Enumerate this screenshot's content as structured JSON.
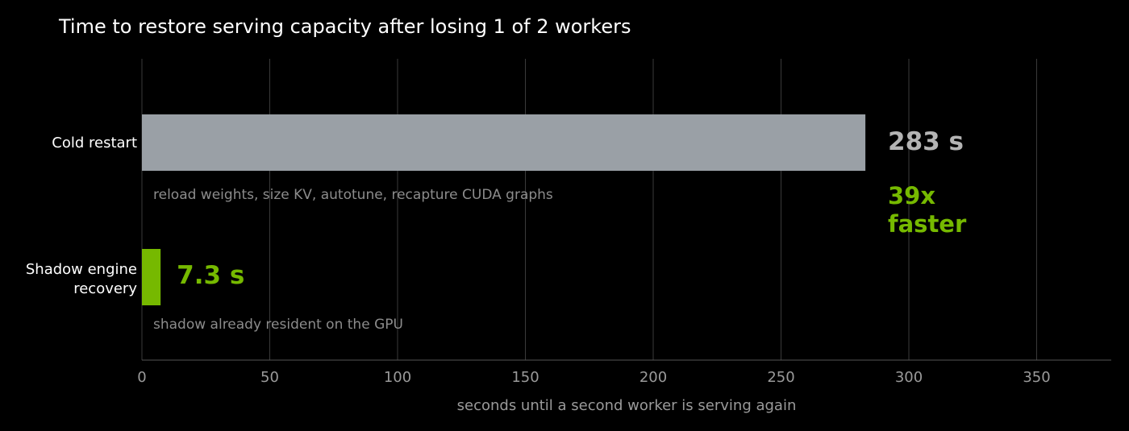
{
  "colors": {
    "background": "#000000",
    "grid": "#3a3a3a",
    "axis": "#555555",
    "cold_bar": "#9aa0a6",
    "shadow_bar": "#76b900",
    "cold_label": "#b4b4b4",
    "accent": "#76b900"
  },
  "chart_data": {
    "type": "bar",
    "orientation": "horizontal",
    "title": "Time to restore serving capacity after losing 1 of 2 workers",
    "xlabel": "seconds until a second worker is serving again",
    "ylabel": "",
    "xlim": [
      0,
      380
    ],
    "xticks": [
      0,
      50,
      100,
      150,
      200,
      250,
      300,
      350
    ],
    "grid": "vertical",
    "legend": "none",
    "categories": [
      "Cold restart",
      "Shadow engine recovery"
    ],
    "category_lines": [
      [
        "Cold restart"
      ],
      [
        "Shadow engine",
        "recovery"
      ]
    ],
    "values": [
      283,
      7.3
    ],
    "value_labels": [
      "283 s",
      "7.3 s"
    ],
    "notes": [
      "reload weights, size KV, autotune, recapture CUDA graphs",
      "shadow already resident on the GPU"
    ],
    "annotation": {
      "lines": [
        "39x",
        "faster"
      ]
    }
  }
}
